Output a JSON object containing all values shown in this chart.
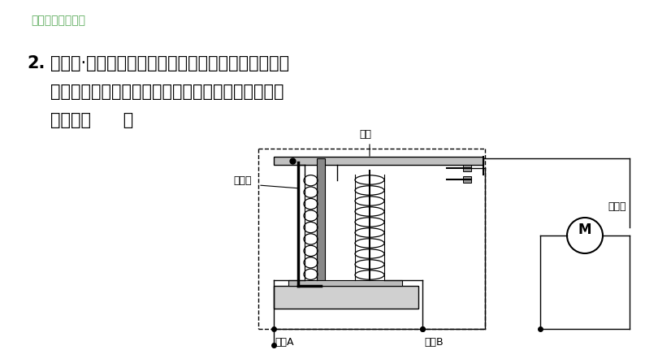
{
  "bg_color": "#ffffff",
  "title_text": "阶段强化专题训练",
  "title_color": "#5aaa5a",
  "title_fontsize": 10,
  "q_num": "2.",
  "q_line1": "【中考·自贡】如图是电磁继电器的构造和工作电路示",
  "q_line2": "意图．要使电磁铁对衔铁的吸引力变大，以下做法可",
  "q_line3": "行的是（      ）",
  "q_fontsize": 15,
  "label_dianci": "电磁铁",
  "label_hengti": "衔铁",
  "label_diandongji": "电动机",
  "label_dianyuan_a": "电源A",
  "label_dianyuan_b": "电源B",
  "label_M": "M",
  "lw": 1.0
}
